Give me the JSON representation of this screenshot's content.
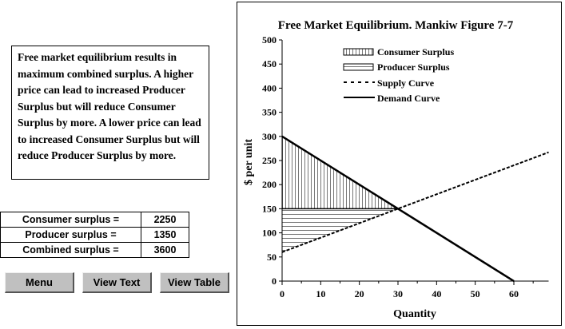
{
  "description_text": "Free market equilibrium results in maximum combined surplus. A higher price can lead to increased Producer Surplus but will reduce Consumer Surplus by more. A lower price can lead to increased Consumer Surplus but will reduce Producer Surplus by more.",
  "stats": [
    {
      "label": "Consumer surplus =",
      "value": "2250"
    },
    {
      "label": "Producer surplus =",
      "value": "1350"
    },
    {
      "label": "Combined surplus =",
      "value": "3600"
    }
  ],
  "buttons": {
    "menu": "Menu",
    "view_text": "View Text",
    "view_table": "View Table"
  },
  "chart_data": {
    "type": "line",
    "title": "Free Market Equilibrium. Mankiw Figure 7-7",
    "xlabel": "Quantity",
    "ylabel": "$ per unit",
    "xlim": [
      0,
      69
    ],
    "ylim": [
      0,
      500
    ],
    "xticks": [
      0,
      10,
      20,
      30,
      40,
      50,
      60
    ],
    "yticks": [
      0,
      50,
      100,
      150,
      200,
      250,
      300,
      350,
      400,
      450,
      500
    ],
    "legend": [
      "Consumer Surplus",
      "Producer Surplus",
      "Supply Curve",
      "Demand Curve"
    ],
    "legend_position": "top-center",
    "series": [
      {
        "name": "Supply Curve",
        "x": [
          0,
          69
        ],
        "y": [
          60,
          267
        ]
      },
      {
        "name": "Demand Curve",
        "x": [
          0,
          60
        ],
        "y": [
          300,
          0
        ]
      }
    ],
    "equilibrium": {
      "quantity": 30,
      "price": 150
    }
  }
}
